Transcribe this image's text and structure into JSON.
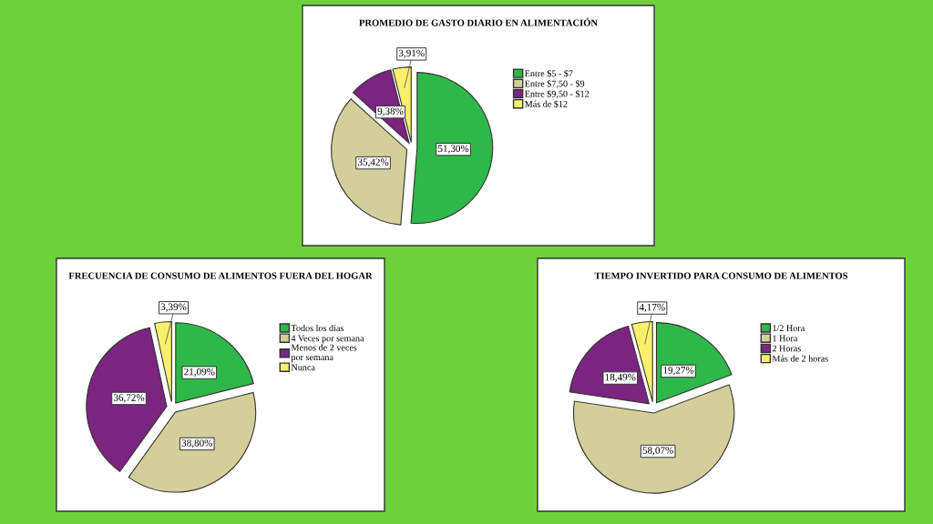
{
  "chart_data": [
    {
      "type": "pie",
      "title": "PROMEDIO DE GASTO DIARIO EN ALIMENTACIÓN",
      "categories": [
        "Entre $5 - $7",
        "Entre $7,50 - $9",
        "Entre $9,50 - $12",
        "Más de $12"
      ],
      "values": [
        51.3,
        35.42,
        9.38,
        3.91
      ],
      "value_labels": [
        "51,30%",
        "35,42%",
        "9,38%",
        "3,91%"
      ],
      "colors": [
        "#2eb84a",
        "#d4cf9a",
        "#7b2480",
        "#f8f06a"
      ],
      "legend": "right"
    },
    {
      "type": "pie",
      "title": "FRECUENCIA DE CONSUMO DE ALIMENTOS FUERA DEL HOGAR",
      "categories": [
        "Todos los días",
        "4 Veces por semana",
        "Menos de 2 veces\npor semana",
        "Nunca"
      ],
      "values": [
        21.09,
        38.8,
        36.72,
        3.39
      ],
      "value_labels": [
        "21,09%",
        "38,80%",
        "36,72%",
        "3,39%"
      ],
      "colors": [
        "#2eb84a",
        "#d4cf9a",
        "#7b2480",
        "#f8f06a"
      ],
      "legend": "right"
    },
    {
      "type": "pie",
      "title": "TIEMPO INVERTIDO PARA CONSUMO DE ALIMENTOS",
      "categories": [
        "1/2 Hora",
        "1 Hora",
        "2 Horas",
        "Más de 2 horas"
      ],
      "values": [
        19.27,
        58.07,
        18.49,
        4.17
      ],
      "value_labels": [
        "19,27%",
        "58,07%",
        "18,49%",
        "4,17%"
      ],
      "colors": [
        "#2eb84a",
        "#d4cf9a",
        "#7b2480",
        "#f8f06a"
      ],
      "legend": "right"
    }
  ]
}
